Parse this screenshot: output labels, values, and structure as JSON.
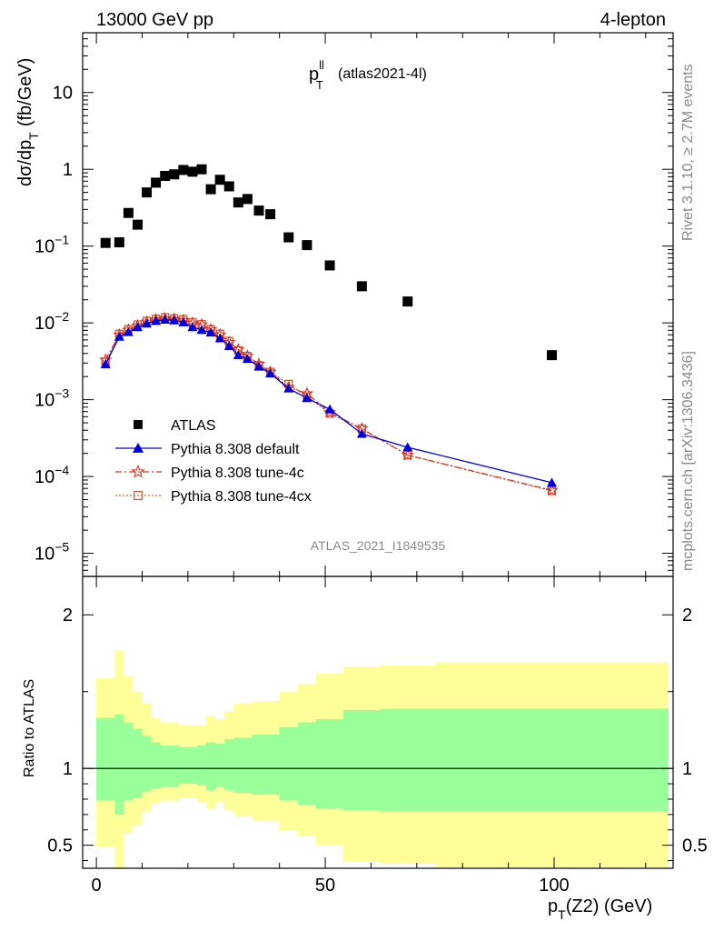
{
  "header": {
    "left": "13000 GeV pp",
    "right": "4-lepton"
  },
  "side_labels": {
    "rivet": "Rivet 3.1.10, ≥ 2.7M events",
    "mcplots": "mcplots.cern.ch [arXiv:1306.3436]"
  },
  "chart_data": [
    {
      "type": "scatter",
      "title_main": "p",
      "title_sup": "ll",
      "title_sub": "T",
      "title_suffix": "(atlas2021-4l)",
      "ylabel_main": "dσ/dp",
      "ylabel_sub": "T",
      "ylabel_suffix": "(fb/GeV)",
      "yscale": "log",
      "xlim": [
        -3,
        126
      ],
      "ylim": [
        5e-06,
        60
      ],
      "analysis_id": "ATLAS_2021_I1849535",
      "y_ticks": [
        {
          "value": 10,
          "label": "10",
          "exp": ""
        },
        {
          "value": 1,
          "label": "1",
          "exp": ""
        },
        {
          "value": 0.1,
          "label": "10",
          "exp": "−1"
        },
        {
          "value": 0.01,
          "label": "10",
          "exp": "−2"
        },
        {
          "value": 0.001,
          "label": "10",
          "exp": "−3"
        },
        {
          "value": 0.0001,
          "label": "10",
          "exp": "−4"
        },
        {
          "value": 1e-05,
          "label": "10",
          "exp": "−5"
        }
      ],
      "legend_position": "lower-left",
      "series": [
        {
          "name": "ATLAS",
          "color": "#000000",
          "marker": "filled-square",
          "x": [
            2,
            5,
            7,
            9,
            11,
            13,
            15,
            17,
            19,
            21,
            23,
            25,
            27,
            29,
            31,
            33,
            35.5,
            38,
            42,
            46,
            51,
            58,
            68,
            99.5
          ],
          "y": [
            0.11,
            0.112,
            0.27,
            0.19,
            0.5,
            0.67,
            0.82,
            0.86,
            0.98,
            0.93,
            1.0,
            0.55,
            0.73,
            0.6,
            0.37,
            0.41,
            0.29,
            0.26,
            0.13,
            0.103,
            0.056,
            0.03,
            0.019,
            0.0038
          ]
        },
        {
          "name": "Pythia 8.308 default",
          "color": "#0000dd",
          "marker": "filled-triangle",
          "line": "solid",
          "x": [
            2,
            5,
            7,
            9,
            11,
            13,
            15,
            17,
            19,
            21,
            23,
            25,
            27,
            29,
            31,
            33,
            35.5,
            38,
            42,
            46,
            51,
            58,
            68,
            99.5
          ],
          "y": [
            0.0029,
            0.0066,
            0.0076,
            0.0088,
            0.0098,
            0.0106,
            0.011,
            0.0108,
            0.0102,
            0.0088,
            0.0081,
            0.0075,
            0.0063,
            0.005,
            0.0038,
            0.0034,
            0.0027,
            0.0022,
            0.0014,
            0.00105,
            0.00075,
            0.00036,
            0.00024,
            8.3e-05
          ]
        },
        {
          "name": "Pythia 8.308 tune-4c",
          "color": "#dd3322",
          "marker": "open-star",
          "line": "dash-dot",
          "x": [
            2,
            5,
            7,
            9,
            11,
            13,
            15,
            17,
            19,
            21,
            23,
            25,
            27,
            29,
            31,
            33,
            35.5,
            38,
            42,
            46,
            51,
            58,
            68,
            99.5
          ],
          "y": [
            0.0033,
            0.007,
            0.0081,
            0.0092,
            0.0103,
            0.011,
            0.0114,
            0.0112,
            0.0108,
            0.01,
            0.0095,
            0.0082,
            0.007,
            0.0056,
            0.0045,
            0.0037,
            0.0029,
            0.0023,
            0.00145,
            0.0012,
            0.00068,
            0.00042,
            0.00019,
            6.6e-05
          ]
        },
        {
          "name": "Pythia 8.308 tune-4cx",
          "color": "#c8643c",
          "marker": "open-square",
          "line": "dotted",
          "x": [
            2,
            5,
            7,
            9,
            11,
            13,
            15,
            17,
            19,
            21,
            23,
            25,
            27,
            29,
            31,
            33,
            35.5,
            38,
            42,
            46,
            51,
            58,
            68,
            99.5
          ],
          "y": [
            0.0031,
            0.0072,
            0.0083,
            0.0095,
            0.0106,
            0.0113,
            0.0118,
            0.0115,
            0.0112,
            0.0102,
            0.0096,
            0.0083,
            0.0072,
            0.0058,
            0.0044,
            0.0037,
            0.0028,
            0.0023,
            0.0016,
            0.0011,
            0.00066,
            0.00042,
            0.00019,
            6.5e-05
          ]
        }
      ]
    },
    {
      "type": "area",
      "ylabel": "Ratio to ATLAS",
      "xlabel_main": "p",
      "xlabel_sub": "T",
      "xlabel_suffix": "(Z2) (GeV)",
      "xlim": [
        -3,
        126
      ],
      "ylim": [
        0.35,
        2.25
      ],
      "x_ticks": [
        0,
        50,
        100
      ],
      "y_ticks": [
        2,
        1,
        0.5
      ],
      "reference_line": 1,
      "band_colors": {
        "outer": "#ffff99",
        "inner": "#99ff99"
      },
      "bins": [
        {
          "x0": 0,
          "x1": 4,
          "outer": [
            0.49,
            1.59
          ],
          "inner": [
            0.79,
            1.33
          ]
        },
        {
          "x0": 4,
          "x1": 6,
          "outer": [
            0.35,
            1.77
          ],
          "inner": [
            0.7,
            1.35
          ]
        },
        {
          "x0": 6,
          "x1": 8,
          "outer": [
            0.58,
            1.6
          ],
          "inner": [
            0.79,
            1.3
          ]
        },
        {
          "x0": 8,
          "x1": 10,
          "outer": [
            0.63,
            1.5
          ],
          "inner": [
            0.81,
            1.26
          ]
        },
        {
          "x0": 10,
          "x1": 12,
          "outer": [
            0.72,
            1.42
          ],
          "inner": [
            0.85,
            1.21
          ]
        },
        {
          "x0": 12,
          "x1": 14,
          "outer": [
            0.77,
            1.33
          ],
          "inner": [
            0.87,
            1.17
          ]
        },
        {
          "x0": 14,
          "x1": 18,
          "outer": [
            0.79,
            1.3
          ],
          "inner": [
            0.88,
            1.15
          ]
        },
        {
          "x0": 18,
          "x1": 22,
          "outer": [
            0.81,
            1.28
          ],
          "inner": [
            0.9,
            1.14
          ]
        },
        {
          "x0": 22,
          "x1": 24,
          "outer": [
            0.78,
            1.28
          ],
          "inner": [
            0.89,
            1.15
          ]
        },
        {
          "x0": 24,
          "x1": 26,
          "outer": [
            0.74,
            1.34
          ],
          "inner": [
            0.86,
            1.17
          ]
        },
        {
          "x0": 26,
          "x1": 28,
          "outer": [
            0.78,
            1.32
          ],
          "inner": [
            0.88,
            1.16
          ]
        },
        {
          "x0": 28,
          "x1": 30,
          "outer": [
            0.73,
            1.37
          ],
          "inner": [
            0.86,
            1.19
          ]
        },
        {
          "x0": 30,
          "x1": 34,
          "outer": [
            0.69,
            1.42
          ],
          "inner": [
            0.84,
            1.2
          ]
        },
        {
          "x0": 34,
          "x1": 40,
          "outer": [
            0.66,
            1.44
          ],
          "inner": [
            0.83,
            1.22
          ]
        },
        {
          "x0": 40,
          "x1": 44,
          "outer": [
            0.6,
            1.5
          ],
          "inner": [
            0.79,
            1.27
          ]
        },
        {
          "x0": 44,
          "x1": 48,
          "outer": [
            0.56,
            1.55
          ],
          "inner": [
            0.76,
            1.3
          ]
        },
        {
          "x0": 48,
          "x1": 54,
          "outer": [
            0.5,
            1.62
          ],
          "inner": [
            0.74,
            1.32
          ]
        },
        {
          "x0": 54,
          "x1": 62,
          "outer": [
            0.39,
            1.66
          ],
          "inner": [
            0.73,
            1.38
          ]
        },
        {
          "x0": 62,
          "x1": 74,
          "outer": [
            0.38,
            1.67
          ],
          "inner": [
            0.72,
            1.39
          ]
        },
        {
          "x0": 74,
          "x1": 125,
          "outer": [
            0.36,
            1.69
          ],
          "inner": [
            0.72,
            1.39
          ]
        }
      ]
    }
  ]
}
